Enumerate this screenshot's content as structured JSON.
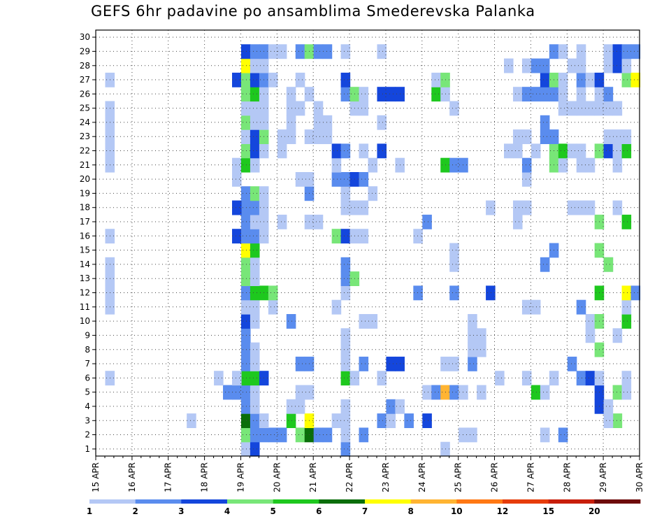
{
  "chart_data": {
    "type": "heatmap",
    "title": "GEFS 6hr padavine po ansamblima Smederevska Palanka",
    "y_ticks": [
      "1",
      "2",
      "3",
      "4",
      "5",
      "6",
      "7",
      "8",
      "9",
      "10",
      "11",
      "12",
      "13",
      "14",
      "15",
      "16",
      "17",
      "18",
      "19",
      "20",
      "21",
      "22",
      "23",
      "24",
      "25",
      "26",
      "27",
      "28",
      "29",
      "30"
    ],
    "x_tick_labels": [
      "15 APR",
      "16 APR",
      "17 APR",
      "18 APR",
      "19 APR",
      "20 APR",
      "21 APR",
      "22 APR",
      "23 APR",
      "24 APR",
      "25 APR",
      "26 APR",
      "27 APR",
      "28 APR",
      "29 APR",
      "30 APR"
    ],
    "members": 31,
    "steps": 60,
    "grid": true,
    "colorbar": {
      "colors": [
        "#b4c8f5",
        "#5a8cee",
        "#1446dc",
        "#78e678",
        "#1ec81e",
        "#0a6e0a",
        "#ffff00",
        "#ffb432",
        "#ff7814",
        "#e63c0a",
        "#c81e0a",
        "#6e0a0a"
      ],
      "labels": [
        "1",
        "2",
        "3",
        "4",
        "5",
        "6",
        "7",
        "8",
        "10",
        "12",
        "15",
        "20"
      ]
    },
    "cells": [
      [
        0,
        16,
        1
      ],
      [
        0,
        17,
        3
      ],
      [
        0,
        27,
        2
      ],
      [
        0,
        38,
        1
      ],
      [
        1,
        16,
        4
      ],
      [
        1,
        17,
        2
      ],
      [
        1,
        18,
        2
      ],
      [
        1,
        19,
        2
      ],
      [
        1,
        20,
        2
      ],
      [
        1,
        22,
        4
      ],
      [
        1,
        23,
        6
      ],
      [
        1,
        24,
        2
      ],
      [
        1,
        25,
        2
      ],
      [
        1,
        27,
        1
      ],
      [
        1,
        29,
        2
      ],
      [
        1,
        40,
        1
      ],
      [
        1,
        41,
        1
      ],
      [
        1,
        49,
        1
      ],
      [
        1,
        51,
        2
      ],
      [
        2,
        16,
        6
      ],
      [
        2,
        17,
        2
      ],
      [
        2,
        18,
        1
      ],
      [
        2,
        10,
        1
      ],
      [
        2,
        21,
        5
      ],
      [
        2,
        23,
        7
      ],
      [
        2,
        26,
        1
      ],
      [
        2,
        27,
        1
      ],
      [
        2,
        31,
        2
      ],
      [
        2,
        32,
        1
      ],
      [
        2,
        34,
        2
      ],
      [
        2,
        36,
        3
      ],
      [
        2,
        57,
        4
      ],
      [
        2,
        56,
        1
      ],
      [
        3,
        16,
        2
      ],
      [
        3,
        17,
        1
      ],
      [
        3,
        21,
        1
      ],
      [
        3,
        22,
        1
      ],
      [
        3,
        27,
        1
      ],
      [
        3,
        32,
        2
      ],
      [
        3,
        33,
        1
      ],
      [
        3,
        55,
        3
      ],
      [
        3,
        56,
        1
      ],
      [
        4,
        16,
        2
      ],
      [
        4,
        15,
        1
      ],
      [
        4,
        15,
        2
      ],
      [
        4,
        14,
        2
      ],
      [
        4,
        17,
        1
      ],
      [
        4,
        22,
        1
      ],
      [
        4,
        23,
        1
      ],
      [
        4,
        36,
        1
      ],
      [
        4,
        37,
        2
      ],
      [
        4,
        38,
        8
      ],
      [
        4,
        39,
        2
      ],
      [
        4,
        40,
        1
      ],
      [
        4,
        42,
        1
      ],
      [
        4,
        48,
        5
      ],
      [
        4,
        49,
        1
      ],
      [
        4,
        55,
        3
      ],
      [
        4,
        57,
        4
      ],
      [
        4,
        58,
        1
      ],
      [
        5,
        16,
        5
      ],
      [
        5,
        17,
        5
      ],
      [
        5,
        18,
        3
      ],
      [
        5,
        1,
        1
      ],
      [
        5,
        13,
        1
      ],
      [
        5,
        15,
        1
      ],
      [
        5,
        27,
        5
      ],
      [
        5,
        28,
        1
      ],
      [
        5,
        31,
        1
      ],
      [
        5,
        58,
        1
      ],
      [
        5,
        61,
        1
      ],
      [
        5,
        53,
        2
      ],
      [
        5,
        54,
        3
      ],
      [
        5,
        55,
        1
      ],
      [
        5,
        60,
        4
      ],
      [
        5,
        61,
        1
      ],
      [
        5,
        50,
        1
      ],
      [
        5,
        44,
        1
      ],
      [
        5,
        47,
        1
      ],
      [
        6,
        16,
        2
      ],
      [
        6,
        17,
        1
      ],
      [
        6,
        22,
        2
      ],
      [
        6,
        23,
        2
      ],
      [
        6,
        27,
        1
      ],
      [
        6,
        29,
        2
      ],
      [
        6,
        32,
        3
      ],
      [
        6,
        33,
        3
      ],
      [
        6,
        38,
        1
      ],
      [
        6,
        39,
        1
      ],
      [
        6,
        41,
        2
      ],
      [
        6,
        52,
        2
      ],
      [
        6,
        60,
        4
      ],
      [
        7,
        16,
        2
      ],
      [
        7,
        17,
        1
      ],
      [
        7,
        27,
        1
      ],
      [
        7,
        41,
        1
      ],
      [
        7,
        42,
        1
      ],
      [
        7,
        55,
        4
      ],
      [
        8,
        16,
        2
      ],
      [
        8,
        27,
        1
      ],
      [
        8,
        41,
        1
      ],
      [
        8,
        42,
        1
      ],
      [
        8,
        54,
        1
      ],
      [
        8,
        57,
        1
      ],
      [
        9,
        16,
        3
      ],
      [
        9,
        17,
        1
      ],
      [
        9,
        21,
        2
      ],
      [
        9,
        29,
        1
      ],
      [
        9,
        30,
        1
      ],
      [
        9,
        41,
        1
      ],
      [
        9,
        54,
        1
      ],
      [
        9,
        55,
        4
      ],
      [
        9,
        58,
        5
      ],
      [
        10,
        1,
        1
      ],
      [
        10,
        16,
        1
      ],
      [
        10,
        17,
        1
      ],
      [
        10,
        19,
        1
      ],
      [
        10,
        26,
        1
      ],
      [
        10,
        58,
        1
      ],
      [
        10,
        62,
        1
      ],
      [
        10,
        63,
        1
      ],
      [
        10,
        53,
        2
      ],
      [
        10,
        47,
        1
      ],
      [
        10,
        48,
        1
      ],
      [
        11,
        1,
        1
      ],
      [
        11,
        16,
        2
      ],
      [
        11,
        17,
        5
      ],
      [
        11,
        18,
        5
      ],
      [
        11,
        19,
        4
      ],
      [
        11,
        27,
        1
      ],
      [
        11,
        35,
        2
      ],
      [
        11,
        39,
        2
      ],
      [
        11,
        43,
        3
      ],
      [
        11,
        55,
        5
      ],
      [
        11,
        58,
        7
      ],
      [
        11,
        59,
        2
      ],
      [
        12,
        1,
        1
      ],
      [
        12,
        16,
        4
      ],
      [
        12,
        17,
        1
      ],
      [
        12,
        27,
        2
      ],
      [
        12,
        28,
        4
      ],
      [
        13,
        1,
        1
      ],
      [
        13,
        16,
        4
      ],
      [
        13,
        17,
        1
      ],
      [
        13,
        56,
        1
      ],
      [
        13,
        27,
        2
      ],
      [
        13,
        39,
        1
      ],
      [
        13,
        49,
        2
      ],
      [
        13,
        56,
        4
      ],
      [
        14,
        16,
        7
      ],
      [
        14,
        17,
        5
      ],
      [
        14,
        39,
        1
      ],
      [
        14,
        50,
        2
      ],
      [
        14,
        55,
        4
      ],
      [
        15,
        1,
        1
      ],
      [
        15,
        15,
        3
      ],
      [
        15,
        16,
        2
      ],
      [
        15,
        17,
        2
      ],
      [
        15,
        18,
        1
      ],
      [
        15,
        35,
        1
      ],
      [
        15,
        26,
        4
      ],
      [
        15,
        27,
        3
      ],
      [
        15,
        28,
        1
      ],
      [
        15,
        29,
        1
      ],
      [
        16,
        16,
        2
      ],
      [
        16,
        17,
        1
      ],
      [
        16,
        18,
        1
      ],
      [
        16,
        20,
        1
      ],
      [
        16,
        23,
        1
      ],
      [
        16,
        24,
        1
      ],
      [
        16,
        36,
        2
      ],
      [
        16,
        46,
        1
      ],
      [
        16,
        55,
        4
      ],
      [
        16,
        58,
        5
      ],
      [
        17,
        16,
        2
      ],
      [
        17,
        15,
        3
      ],
      [
        17,
        17,
        2
      ],
      [
        17,
        18,
        1
      ],
      [
        17,
        27,
        1
      ],
      [
        17,
        28,
        1
      ],
      [
        17,
        29,
        1
      ],
      [
        17,
        43,
        1
      ],
      [
        17,
        46,
        1
      ],
      [
        17,
        47,
        1
      ],
      [
        17,
        52,
        1
      ],
      [
        17,
        53,
        1
      ],
      [
        17,
        54,
        1
      ],
      [
        17,
        57,
        1
      ],
      [
        18,
        16,
        2
      ],
      [
        18,
        17,
        4
      ],
      [
        18,
        18,
        1
      ],
      [
        18,
        23,
        2
      ],
      [
        18,
        27,
        1
      ],
      [
        18,
        30,
        1
      ],
      [
        19,
        15,
        1
      ],
      [
        19,
        22,
        1
      ],
      [
        19,
        23,
        1
      ],
      [
        19,
        26,
        2
      ],
      [
        19,
        27,
        2
      ],
      [
        19,
        28,
        3
      ],
      [
        19,
        29,
        2
      ],
      [
        19,
        47,
        1
      ],
      [
        20,
        1,
        1
      ],
      [
        20,
        15,
        1
      ],
      [
        20,
        16,
        5
      ],
      [
        20,
        17,
        1
      ],
      [
        20,
        33,
        1
      ],
      [
        20,
        26,
        1
      ],
      [
        20,
        30,
        1
      ],
      [
        20,
        38,
        5
      ],
      [
        20,
        39,
        2
      ],
      [
        20,
        40,
        2
      ],
      [
        20,
        47,
        2
      ],
      [
        20,
        50,
        4
      ],
      [
        20,
        51,
        1
      ],
      [
        20,
        53,
        1
      ],
      [
        20,
        54,
        1
      ],
      [
        20,
        57,
        1
      ],
      [
        21,
        1,
        1
      ],
      [
        21,
        16,
        4
      ],
      [
        21,
        17,
        3
      ],
      [
        21,
        18,
        1
      ],
      [
        21,
        20,
        1
      ],
      [
        21,
        26,
        3
      ],
      [
        21,
        27,
        2
      ],
      [
        21,
        29,
        1
      ],
      [
        21,
        31,
        3
      ],
      [
        21,
        45,
        1
      ],
      [
        21,
        46,
        1
      ],
      [
        21,
        48,
        1
      ],
      [
        21,
        50,
        4
      ],
      [
        21,
        51,
        5
      ],
      [
        21,
        52,
        1
      ],
      [
        21,
        53,
        1
      ],
      [
        21,
        55,
        4
      ],
      [
        21,
        56,
        3
      ],
      [
        21,
        57,
        1
      ],
      [
        21,
        58,
        5
      ],
      [
        21,
        60,
        1
      ],
      [
        22,
        1,
        1
      ],
      [
        22,
        16,
        1
      ],
      [
        22,
        17,
        3
      ],
      [
        22,
        18,
        4
      ],
      [
        22,
        20,
        1
      ],
      [
        22,
        21,
        1
      ],
      [
        22,
        23,
        1
      ],
      [
        22,
        24,
        1
      ],
      [
        22,
        25,
        1
      ],
      [
        22,
        46,
        1
      ],
      [
        22,
        47,
        1
      ],
      [
        22,
        49,
        2
      ],
      [
        22,
        50,
        2
      ],
      [
        22,
        56,
        1
      ],
      [
        22,
        57,
        1
      ],
      [
        22,
        58,
        1
      ],
      [
        22,
        60,
        4
      ],
      [
        22,
        61,
        1
      ],
      [
        22,
        62,
        1
      ],
      [
        22,
        63,
        1
      ],
      [
        22,
        64,
        1
      ],
      [
        23,
        1,
        1
      ],
      [
        23,
        16,
        4
      ],
      [
        23,
        17,
        1
      ],
      [
        23,
        18,
        1
      ],
      [
        23,
        21,
        1
      ],
      [
        23,
        24,
        1
      ],
      [
        23,
        25,
        1
      ],
      [
        23,
        31,
        1
      ],
      [
        23,
        49,
        2
      ],
      [
        24,
        1,
        1
      ],
      [
        24,
        16,
        1
      ],
      [
        24,
        17,
        1
      ],
      [
        24,
        18,
        1
      ],
      [
        24,
        21,
        1
      ],
      [
        24,
        22,
        1
      ],
      [
        24,
        24,
        1
      ],
      [
        24,
        28,
        1
      ],
      [
        24,
        29,
        1
      ],
      [
        24,
        39,
        1
      ],
      [
        24,
        51,
        1
      ],
      [
        24,
        52,
        1
      ],
      [
        24,
        53,
        1
      ],
      [
        24,
        54,
        1
      ],
      [
        24,
        55,
        1
      ],
      [
        24,
        56,
        1
      ],
      [
        24,
        57,
        1
      ],
      [
        24,
        62,
        1
      ],
      [
        24,
        63,
        1
      ],
      [
        25,
        16,
        4
      ],
      [
        25,
        17,
        5
      ],
      [
        25,
        18,
        1
      ],
      [
        25,
        21,
        1
      ],
      [
        25,
        23,
        1
      ],
      [
        25,
        27,
        2
      ],
      [
        25,
        28,
        4
      ],
      [
        25,
        29,
        1
      ],
      [
        25,
        31,
        3
      ],
      [
        25,
        32,
        3
      ],
      [
        25,
        33,
        3
      ],
      [
        25,
        37,
        5
      ],
      [
        25,
        38,
        1
      ],
      [
        25,
        46,
        1
      ],
      [
        25,
        47,
        2
      ],
      [
        25,
        48,
        2
      ],
      [
        25,
        49,
        2
      ],
      [
        25,
        50,
        2
      ],
      [
        25,
        51,
        1
      ],
      [
        25,
        53,
        1
      ],
      [
        25,
        55,
        1
      ],
      [
        25,
        56,
        2
      ],
      [
        26,
        1,
        1
      ],
      [
        26,
        15,
        3
      ],
      [
        26,
        16,
        4
      ],
      [
        26,
        17,
        3
      ],
      [
        26,
        18,
        2
      ],
      [
        26,
        19,
        1
      ],
      [
        26,
        22,
        1
      ],
      [
        26,
        27,
        3
      ],
      [
        26,
        37,
        1
      ],
      [
        26,
        38,
        4
      ],
      [
        26,
        49,
        3
      ],
      [
        26,
        50,
        4
      ],
      [
        26,
        51,
        1
      ],
      [
        26,
        53,
        2
      ],
      [
        26,
        54,
        1
      ],
      [
        26,
        55,
        3
      ],
      [
        26,
        58,
        4
      ],
      [
        26,
        59,
        7
      ],
      [
        26,
        60,
        1
      ],
      [
        27,
        16,
        7
      ],
      [
        27,
        17,
        1
      ],
      [
        27,
        18,
        1
      ],
      [
        27,
        45,
        1
      ],
      [
        27,
        47,
        1
      ],
      [
        27,
        48,
        2
      ],
      [
        27,
        49,
        2
      ],
      [
        27,
        52,
        1
      ],
      [
        27,
        53,
        1
      ],
      [
        27,
        56,
        1
      ],
      [
        27,
        57,
        3
      ],
      [
        27,
        58,
        1
      ],
      [
        27,
        62,
        1
      ],
      [
        27,
        63,
        2
      ],
      [
        27,
        64,
        1
      ],
      [
        28,
        16,
        3
      ],
      [
        28,
        17,
        2
      ],
      [
        28,
        18,
        2
      ],
      [
        28,
        19,
        1
      ],
      [
        28,
        20,
        1
      ],
      [
        28,
        22,
        2
      ],
      [
        28,
        23,
        4
      ],
      [
        28,
        24,
        2
      ],
      [
        28,
        25,
        2
      ],
      [
        28,
        27,
        1
      ],
      [
        28,
        31,
        1
      ],
      [
        28,
        50,
        2
      ],
      [
        28,
        51,
        1
      ],
      [
        28,
        53,
        1
      ],
      [
        28,
        56,
        1
      ],
      [
        28,
        57,
        3
      ],
      [
        28,
        58,
        2
      ],
      [
        28,
        59,
        2
      ],
      [
        28,
        60,
        1
      ],
      [
        28,
        61,
        1
      ],
      [
        28,
        62,
        1
      ],
      [
        28,
        63,
        1
      ],
      [
        28,
        64,
        2
      ]
    ]
  }
}
